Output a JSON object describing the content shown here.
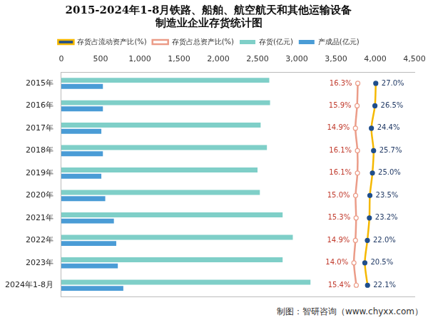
{
  "chart_data": {
    "type": "bar",
    "orientation": "horizontal",
    "title": [
      "2015-2024年1-8月铁路、船舶、航空航天和其他运输设备",
      "制造业企业存货统计图"
    ],
    "source": "制图：智研咨询（www.chyxx.com）",
    "categories": [
      "2015年",
      "2016年",
      "2017年",
      "2018年",
      "2019年",
      "2020年",
      "2021年",
      "2022年",
      "2023年",
      "2024年1-8月"
    ],
    "series": [
      {
        "name": "存货(亿元)",
        "type": "bar",
        "color": "#7fcfc8",
        "values": [
          2650,
          2660,
          2540,
          2620,
          2500,
          2530,
          2820,
          2950,
          2820,
          3175
        ]
      },
      {
        "name": "产成品(亿元)",
        "type": "bar",
        "color": "#4a9cd6",
        "values": [
          530,
          530,
          510,
          530,
          510,
          560,
          670,
          700,
          720,
          790
        ]
      },
      {
        "name": "存货占流动资产比(%)",
        "type": "line",
        "axis": "y2",
        "color": "#f5b800",
        "marker": "circle",
        "data_labels": true,
        "values": [
          27.0,
          26.5,
          24.4,
          25.7,
          25.0,
          23.5,
          23.2,
          22.0,
          20.5,
          22.1
        ],
        "value_labels": [
          "27.0%",
          "26.5%",
          "24.4%",
          "25.7%",
          "25.0%",
          "23.5%",
          "23.2%",
          "22.0%",
          "20.5%",
          "22.1%"
        ]
      },
      {
        "name": "存货占总资产比(%)",
        "type": "line",
        "axis": "y2",
        "color": "#eb9c88",
        "marker": "circle",
        "data_labels": true,
        "values": [
          16.3,
          15.9,
          14.9,
          16.1,
          16.1,
          15.0,
          15.3,
          14.9,
          14.0,
          15.4
        ],
        "value_labels": [
          "16.3%",
          "15.9%",
          "14.9%",
          "16.1%",
          "16.1%",
          "15.0%",
          "15.3%",
          "14.9%",
          "14.0%",
          "15.4%"
        ]
      }
    ],
    "ylim": [
      0,
      4500
    ],
    "yticks": [
      0,
      500,
      1000,
      1500,
      2000,
      2500,
      3000,
      3500,
      4000,
      4500
    ],
    "y2lim": [
      -160,
      50
    ],
    "grid": false,
    "legend": "top"
  }
}
